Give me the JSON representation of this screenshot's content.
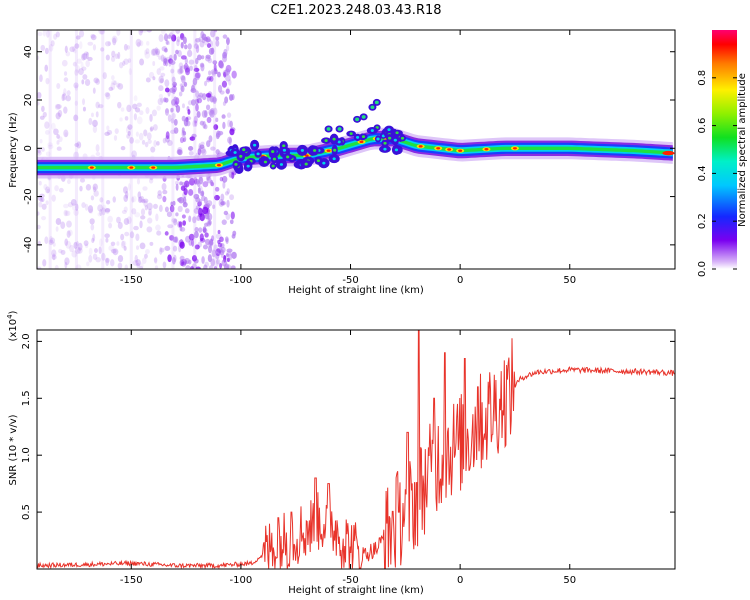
{
  "title": "C2E1.2023.248.03.43.R18",
  "colors": {
    "snr_line": "#e8332a",
    "spectrum_background": "#ffffff"
  },
  "chart_data": [
    {
      "type": "heatmap",
      "xlabel": "Height of straight line (km)",
      "ylabel": "Frequency (Hz)",
      "xlim": [
        -193,
        98
      ],
      "ylim": [
        -50,
        49
      ],
      "xticks": [
        -150,
        -100,
        -50,
        0,
        50
      ],
      "yticks": [
        -40,
        -20,
        0,
        20,
        40
      ],
      "colorbar": {
        "label": "Normalized spectral amplitude",
        "range": [
          0,
          1
        ],
        "ticks": [
          0.0,
          0.2,
          0.4,
          0.6,
          0.8
        ],
        "colormap": "rainbow (white/violet → blue → cyan → green → yellow → red → magenta)"
      },
      "ridge": [
        {
          "x": -193,
          "y": -8
        },
        {
          "x": -160,
          "y": -8
        },
        {
          "x": -130,
          "y": -8
        },
        {
          "x": -110,
          "y": -7
        },
        {
          "x": -100,
          "y": -4
        },
        {
          "x": -85,
          "y": -3
        },
        {
          "x": -70,
          "y": -3
        },
        {
          "x": -55,
          "y": 0
        },
        {
          "x": -40,
          "y": 4
        },
        {
          "x": -30,
          "y": 4
        },
        {
          "x": -20,
          "y": 1
        },
        {
          "x": -10,
          "y": 0
        },
        {
          "x": 0,
          "y": -1
        },
        {
          "x": 20,
          "y": 0
        },
        {
          "x": 50,
          "y": 0
        },
        {
          "x": 80,
          "y": -1
        },
        {
          "x": 98,
          "y": -2
        }
      ]
    },
    {
      "type": "line",
      "xlabel": "Height of straight line (km)",
      "ylabel": "SNR (10 * v/v)",
      "yunit": "(x10",
      "yunit_exp": "4",
      "yunit_close": ")",
      "xlim": [
        -193,
        98
      ],
      "ylim": [
        0,
        2.1
      ],
      "xticks": [
        -150,
        -100,
        -50,
        0,
        50
      ],
      "yticks": [
        "0.5",
        "1.0",
        "1.5",
        "2.0"
      ],
      "envelope": [
        {
          "x": -193,
          "y": 0.03
        },
        {
          "x": -170,
          "y": 0.04
        },
        {
          "x": -150,
          "y": 0.05
        },
        {
          "x": -130,
          "y": 0.03
        },
        {
          "x": -110,
          "y": 0.03
        },
        {
          "x": -95,
          "y": 0.05
        },
        {
          "x": -85,
          "y": 0.2
        },
        {
          "x": -75,
          "y": 0.3
        },
        {
          "x": -65,
          "y": 0.4
        },
        {
          "x": -60,
          "y": 0.45
        },
        {
          "x": -55,
          "y": 0.3
        },
        {
          "x": -50,
          "y": 0.2
        },
        {
          "x": -45,
          "y": 0.12
        },
        {
          "x": -38,
          "y": 0.18
        },
        {
          "x": -32,
          "y": 0.35
        },
        {
          "x": -26,
          "y": 0.5
        },
        {
          "x": -20,
          "y": 0.6
        },
        {
          "x": -15,
          "y": 0.8
        },
        {
          "x": -10,
          "y": 0.95
        },
        {
          "x": -5,
          "y": 1.05
        },
        {
          "x": 0,
          "y": 1.1
        },
        {
          "x": 5,
          "y": 1.2
        },
        {
          "x": 10,
          "y": 1.3
        },
        {
          "x": 20,
          "y": 1.5
        },
        {
          "x": 28,
          "y": 1.68
        },
        {
          "x": 35,
          "y": 1.73
        },
        {
          "x": 50,
          "y": 1.75
        },
        {
          "x": 70,
          "y": 1.74
        },
        {
          "x": 90,
          "y": 1.73
        },
        {
          "x": 98,
          "y": 1.72
        }
      ],
      "peaks": [
        {
          "x": -83,
          "y": 0.45
        },
        {
          "x": -77,
          "y": 0.5
        },
        {
          "x": -66,
          "y": 0.8
        },
        {
          "x": -60,
          "y": 0.75
        },
        {
          "x": -28,
          "y": 0.5
        },
        {
          "x": -24,
          "y": 1.2
        },
        {
          "x": -19,
          "y": 2.1
        },
        {
          "x": -12,
          "y": 1.5
        },
        {
          "x": -7,
          "y": 1.9
        },
        {
          "x": 2,
          "y": 1.85
        },
        {
          "x": 8,
          "y": 1.6
        }
      ]
    }
  ]
}
